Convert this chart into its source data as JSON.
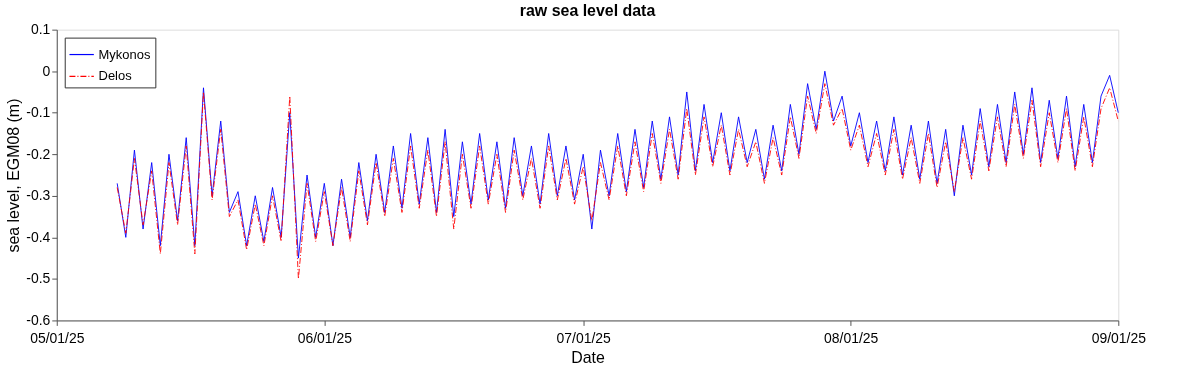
{
  "chart_data": {
    "type": "line",
    "title": "raw sea level data",
    "xlabel": "Date",
    "ylabel": "sea level, EGM08 (m)",
    "x": [
      "2025-05-08",
      "2025-05-09",
      "2025-05-10",
      "2025-05-11",
      "2025-05-12",
      "2025-05-13",
      "2025-05-14",
      "2025-05-15",
      "2025-05-16",
      "2025-05-17",
      "2025-05-18",
      "2025-05-19",
      "2025-05-20",
      "2025-05-21",
      "2025-05-22",
      "2025-05-23",
      "2025-05-24",
      "2025-05-25",
      "2025-05-26",
      "2025-05-27",
      "2025-05-28",
      "2025-05-29",
      "2025-05-30",
      "2025-05-31",
      "2025-06-01",
      "2025-06-02",
      "2025-06-03",
      "2025-06-04",
      "2025-06-05",
      "2025-06-06",
      "2025-06-07",
      "2025-06-08",
      "2025-06-09",
      "2025-06-10",
      "2025-06-11",
      "2025-06-12",
      "2025-06-13",
      "2025-06-14",
      "2025-06-15",
      "2025-06-16",
      "2025-06-17",
      "2025-06-18",
      "2025-06-19",
      "2025-06-20",
      "2025-06-21",
      "2025-06-22",
      "2025-06-23",
      "2025-06-24",
      "2025-06-25",
      "2025-06-26",
      "2025-06-27",
      "2025-06-28",
      "2025-06-29",
      "2025-06-30",
      "2025-07-01",
      "2025-07-02",
      "2025-07-03",
      "2025-07-04",
      "2025-07-05",
      "2025-07-06",
      "2025-07-07",
      "2025-07-08",
      "2025-07-09",
      "2025-07-10",
      "2025-07-11",
      "2025-07-12",
      "2025-07-13",
      "2025-07-14",
      "2025-07-15",
      "2025-07-16",
      "2025-07-17",
      "2025-07-18",
      "2025-07-19",
      "2025-07-20",
      "2025-07-21",
      "2025-07-22",
      "2025-07-23",
      "2025-07-24",
      "2025-07-25",
      "2025-07-26",
      "2025-07-27",
      "2025-07-28",
      "2025-07-29",
      "2025-07-30",
      "2025-07-31",
      "2025-08-01",
      "2025-08-02",
      "2025-08-03",
      "2025-08-04",
      "2025-08-05",
      "2025-08-06",
      "2025-08-07",
      "2025-08-08",
      "2025-08-09",
      "2025-08-10",
      "2025-08-11",
      "2025-08-12",
      "2025-08-13",
      "2025-08-14",
      "2025-08-15",
      "2025-08-16",
      "2025-08-17",
      "2025-08-18",
      "2025-08-19",
      "2025-08-20",
      "2025-08-21",
      "2025-08-22",
      "2025-08-23",
      "2025-08-24",
      "2025-08-25",
      "2025-08-26",
      "2025-08-27",
      "2025-08-28",
      "2025-08-29",
      "2025-08-30",
      "2025-08-31",
      "2025-09-01"
    ],
    "series": [
      {
        "name": "Mykonos",
        "color": "#0000ff",
        "line_style": "solid",
        "values": [
          -0.27,
          -0.4,
          -0.19,
          -0.38,
          -0.22,
          -0.42,
          -0.2,
          -0.36,
          -0.16,
          -0.42,
          -0.04,
          -0.3,
          -0.12,
          -0.34,
          -0.29,
          -0.42,
          -0.3,
          -0.41,
          -0.28,
          -0.4,
          -0.1,
          -0.45,
          -0.25,
          -0.4,
          -0.27,
          -0.42,
          -0.26,
          -0.4,
          -0.22,
          -0.36,
          -0.2,
          -0.34,
          -0.18,
          -0.33,
          -0.15,
          -0.32,
          -0.16,
          -0.34,
          -0.14,
          -0.35,
          -0.17,
          -0.32,
          -0.15,
          -0.31,
          -0.17,
          -0.33,
          -0.16,
          -0.3,
          -0.18,
          -0.32,
          -0.15,
          -0.3,
          -0.18,
          -0.31,
          -0.2,
          -0.38,
          -0.19,
          -0.3,
          -0.15,
          -0.29,
          -0.14,
          -0.28,
          -0.12,
          -0.26,
          -0.11,
          -0.25,
          -0.05,
          -0.24,
          -0.08,
          -0.22,
          -0.1,
          -0.24,
          -0.11,
          -0.22,
          -0.14,
          -0.26,
          -0.13,
          -0.24,
          -0.08,
          -0.2,
          -0.03,
          -0.14,
          0.0,
          -0.12,
          -0.06,
          -0.18,
          -0.1,
          -0.22,
          -0.12,
          -0.24,
          -0.11,
          -0.25,
          -0.13,
          -0.26,
          -0.12,
          -0.27,
          -0.14,
          -0.3,
          -0.13,
          -0.25,
          -0.09,
          -0.23,
          -0.08,
          -0.22,
          -0.05,
          -0.2,
          -0.04,
          -0.22,
          -0.07,
          -0.21,
          -0.06,
          -0.23,
          -0.08,
          -0.22,
          -0.06,
          -0.01,
          -0.1
        ]
      },
      {
        "name": "Delos",
        "color": "#ff0000",
        "line_style": "dashdot",
        "values": [
          -0.28,
          -0.39,
          -0.21,
          -0.37,
          -0.24,
          -0.44,
          -0.22,
          -0.37,
          -0.18,
          -0.44,
          -0.05,
          -0.31,
          -0.14,
          -0.35,
          -0.31,
          -0.43,
          -0.32,
          -0.42,
          -0.3,
          -0.41,
          -0.06,
          -0.5,
          -0.27,
          -0.41,
          -0.29,
          -0.42,
          -0.28,
          -0.41,
          -0.24,
          -0.37,
          -0.22,
          -0.35,
          -0.21,
          -0.34,
          -0.18,
          -0.33,
          -0.19,
          -0.35,
          -0.17,
          -0.38,
          -0.2,
          -0.33,
          -0.18,
          -0.32,
          -0.2,
          -0.34,
          -0.19,
          -0.31,
          -0.21,
          -0.33,
          -0.18,
          -0.31,
          -0.21,
          -0.32,
          -0.23,
          -0.36,
          -0.22,
          -0.31,
          -0.18,
          -0.3,
          -0.17,
          -0.29,
          -0.15,
          -0.27,
          -0.14,
          -0.26,
          -0.09,
          -0.25,
          -0.11,
          -0.23,
          -0.13,
          -0.25,
          -0.14,
          -0.23,
          -0.17,
          -0.27,
          -0.16,
          -0.25,
          -0.11,
          -0.21,
          -0.06,
          -0.15,
          -0.03,
          -0.13,
          -0.09,
          -0.19,
          -0.13,
          -0.23,
          -0.15,
          -0.25,
          -0.14,
          -0.26,
          -0.16,
          -0.27,
          -0.15,
          -0.28,
          -0.17,
          -0.29,
          -0.16,
          -0.26,
          -0.12,
          -0.24,
          -0.11,
          -0.23,
          -0.08,
          -0.21,
          -0.07,
          -0.23,
          -0.1,
          -0.22,
          -0.09,
          -0.24,
          -0.11,
          -0.23,
          -0.09,
          -0.04,
          -0.12
        ]
      }
    ],
    "xlim": [
      "2025-05-01",
      "2025-09-01"
    ],
    "xticks": [
      {
        "value": "2025-05-01",
        "label": "05/01/25"
      },
      {
        "value": "2025-06-01",
        "label": "06/01/25"
      },
      {
        "value": "2025-07-01",
        "label": "07/01/25"
      },
      {
        "value": "2025-08-01",
        "label": "08/01/25"
      },
      {
        "value": "2025-09-01",
        "label": "09/01/25"
      }
    ],
    "ylim": [
      -0.6,
      0.1
    ],
    "yticks": [
      -0.6,
      -0.5,
      -0.4,
      -0.3,
      -0.2,
      -0.1,
      0,
      0.1
    ],
    "grid": false,
    "legend": "top left",
    "marker": "none"
  }
}
